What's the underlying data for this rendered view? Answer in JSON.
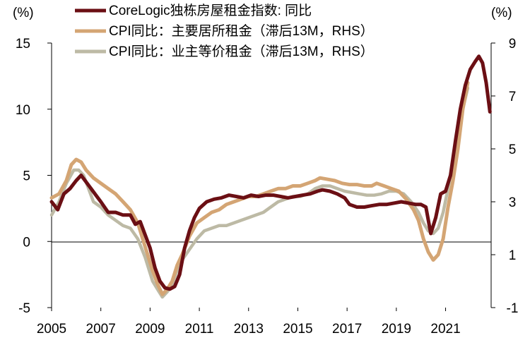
{
  "chart_data": {
    "type": "line",
    "title": "",
    "xlabel": "",
    "ylabel_left": "(%)",
    "ylabel_right": "(%)",
    "x_range": [
      2005.0,
      2022.85
    ],
    "ylim_left": [
      -5,
      15
    ],
    "ylim_right": [
      -1,
      9
    ],
    "left_ticks": [
      "-5",
      "0",
      "5",
      "10",
      "15"
    ],
    "right_ticks": [
      "-1",
      "1",
      "3",
      "5",
      "7",
      "9"
    ],
    "x_ticks": [
      "2005",
      "2007",
      "2009",
      "2011",
      "2013",
      "2015",
      "2017",
      "2019",
      "2021"
    ],
    "grid": false,
    "legend_position": "top",
    "series": [
      {
        "name": "CoreLogic独栋房屋租金指数: 同比",
        "axis": "left",
        "color": "#6b0f14",
        "x": [
          2005.0,
          2005.25,
          2005.5,
          2005.75,
          2006.0,
          2006.2,
          2006.4,
          2006.6,
          2006.8,
          2007.0,
          2007.3,
          2007.6,
          2007.9,
          2008.2,
          2008.4,
          2008.6,
          2008.8,
          2009.0,
          2009.2,
          2009.4,
          2009.6,
          2009.8,
          2010.0,
          2010.2,
          2010.4,
          2010.6,
          2010.8,
          2011.0,
          2011.3,
          2011.6,
          2011.9,
          2012.2,
          2012.5,
          2012.8,
          2013.1,
          2013.4,
          2013.7,
          2014.0,
          2014.3,
          2014.6,
          2014.9,
          2015.2,
          2015.5,
          2015.8,
          2016.0,
          2016.3,
          2016.6,
          2016.9,
          2017.1,
          2017.4,
          2017.7,
          2018.0,
          2018.3,
          2018.6,
          2018.9,
          2019.2,
          2019.5,
          2019.8,
          2020.0,
          2020.2,
          2020.4,
          2020.6,
          2020.8,
          2021.0,
          2021.2,
          2021.4,
          2021.6,
          2021.8,
          2022.0,
          2022.2,
          2022.35,
          2022.5,
          2022.65,
          2022.8
        ],
        "values": [
          3.0,
          2.4,
          3.6,
          4.0,
          4.6,
          5.0,
          4.5,
          4.0,
          3.5,
          3.0,
          2.2,
          2.2,
          2.0,
          2.0,
          1.3,
          1.5,
          0.5,
          -0.5,
          -2.0,
          -3.0,
          -3.5,
          -3.6,
          -3.4,
          -2.5,
          -0.5,
          0.8,
          1.8,
          2.5,
          3.0,
          3.2,
          3.3,
          3.5,
          3.4,
          3.3,
          3.5,
          3.4,
          3.5,
          3.5,
          3.4,
          3.3,
          3.4,
          3.5,
          3.6,
          3.8,
          3.9,
          3.8,
          3.6,
          3.3,
          2.8,
          2.6,
          2.6,
          2.7,
          2.8,
          2.8,
          2.9,
          3.0,
          2.9,
          2.8,
          2.8,
          2.6,
          0.6,
          1.8,
          3.6,
          3.8,
          5.0,
          7.6,
          10.0,
          11.8,
          13.0,
          13.6,
          14.0,
          13.5,
          12.0,
          9.8
        ]
      },
      {
        "name": "CPI同比：主要居所租金（滞后13M，RHS）",
        "axis": "right",
        "color": "#d4a574",
        "x": [
          2005.0,
          2005.3,
          2005.6,
          2005.8,
          2006.0,
          2006.2,
          2006.4,
          2006.7,
          2007.0,
          2007.3,
          2007.6,
          2007.9,
          2008.2,
          2008.5,
          2008.8,
          2009.1,
          2009.3,
          2009.5,
          2009.7,
          2009.9,
          2010.1,
          2010.3,
          2010.6,
          2010.9,
          2011.2,
          2011.5,
          2011.8,
          2012.1,
          2012.4,
          2012.7,
          2013.0,
          2013.3,
          2013.6,
          2013.9,
          2014.2,
          2014.5,
          2014.8,
          2015.1,
          2015.4,
          2015.7,
          2015.9,
          2016.2,
          2016.5,
          2016.8,
          2017.1,
          2017.4,
          2017.7,
          2018.0,
          2018.2,
          2018.5,
          2018.8,
          2019.1,
          2019.4,
          2019.7,
          2019.9,
          2020.1,
          2020.3,
          2020.5,
          2020.7,
          2020.9,
          2021.1,
          2021.3,
          2021.5,
          2021.7,
          2021.9
        ],
        "values": [
          3.15,
          3.3,
          3.8,
          4.4,
          4.6,
          4.5,
          4.2,
          3.9,
          3.7,
          3.5,
          3.3,
          3.0,
          2.7,
          2.2,
          1.3,
          0.4,
          -0.1,
          -0.5,
          -0.3,
          0.0,
          0.6,
          1.0,
          1.7,
          2.2,
          2.4,
          2.6,
          2.7,
          2.9,
          3.0,
          3.1,
          3.2,
          3.2,
          3.3,
          3.4,
          3.5,
          3.5,
          3.6,
          3.6,
          3.7,
          3.8,
          3.9,
          3.85,
          3.8,
          3.7,
          3.65,
          3.65,
          3.6,
          3.6,
          3.7,
          3.6,
          3.5,
          3.4,
          3.1,
          2.7,
          2.3,
          1.6,
          1.1,
          0.8,
          1.0,
          1.6,
          2.8,
          3.8,
          5.0,
          6.5,
          7.5
        ]
      },
      {
        "name": "CPI同比：业主等价租金（滞后13M，RHS）",
        "axis": "right",
        "color": "#bdbaa5",
        "x": [
          2005.0,
          2005.3,
          2005.6,
          2005.9,
          2006.1,
          2006.3,
          2006.5,
          2006.7,
          2007.0,
          2007.3,
          2007.6,
          2007.9,
          2008.2,
          2008.5,
          2008.8,
          2009.1,
          2009.3,
          2009.5,
          2009.7,
          2009.9,
          2010.1,
          2010.3,
          2010.6,
          2010.9,
          2011.2,
          2011.5,
          2011.8,
          2012.1,
          2012.4,
          2012.7,
          2013.0,
          2013.3,
          2013.6,
          2013.9,
          2014.2,
          2014.5,
          2014.8,
          2015.1,
          2015.4,
          2015.7,
          2016.0,
          2016.3,
          2016.6,
          2016.9,
          2017.2,
          2017.5,
          2017.8,
          2018.1,
          2018.4,
          2018.7,
          2019.0,
          2019.3,
          2019.6,
          2019.9,
          2020.1,
          2020.3,
          2020.5,
          2020.7,
          2020.9,
          2021.1,
          2021.3,
          2021.5,
          2021.7,
          2021.9
        ],
        "values": [
          2.5,
          3.0,
          3.7,
          4.2,
          4.2,
          4.0,
          3.5,
          3.0,
          2.8,
          2.5,
          2.3,
          2.1,
          2.0,
          1.6,
          0.9,
          0.0,
          -0.3,
          -0.6,
          -0.4,
          -0.1,
          0.4,
          0.8,
          1.2,
          1.6,
          1.9,
          2.0,
          2.1,
          2.1,
          2.2,
          2.3,
          2.4,
          2.5,
          2.6,
          2.8,
          3.0,
          3.1,
          3.2,
          3.2,
          3.3,
          3.5,
          3.6,
          3.6,
          3.5,
          3.4,
          3.35,
          3.3,
          3.25,
          3.25,
          3.3,
          3.4,
          3.4,
          3.3,
          3.0,
          2.6,
          2.2,
          1.9,
          1.8,
          2.0,
          2.6,
          3.5,
          4.5,
          5.6,
          6.5,
          7.3
        ]
      }
    ]
  }
}
